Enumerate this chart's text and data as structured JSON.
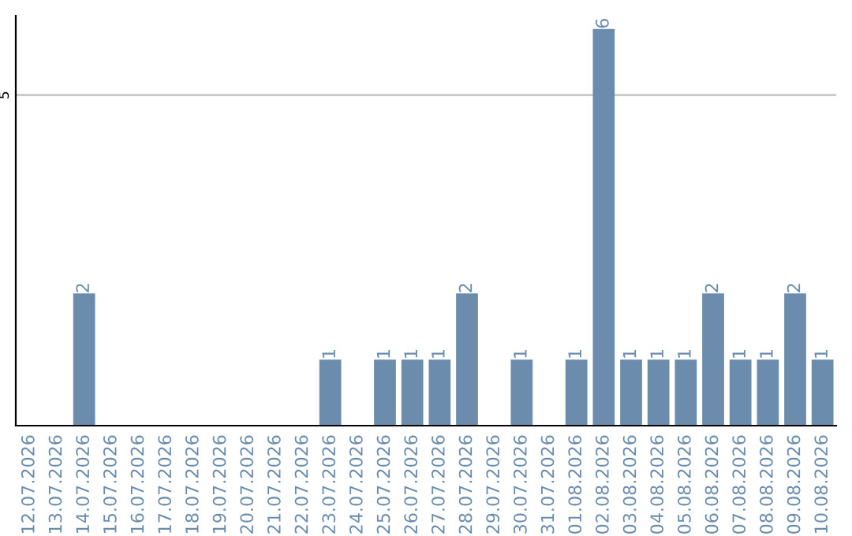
{
  "chart_data": {
    "type": "bar",
    "categories": [
      "12.07.2026",
      "13.07.2026",
      "14.07.2026",
      "15.07.2026",
      "16.07.2026",
      "17.07.2026",
      "18.07.2026",
      "19.07.2026",
      "20.07.2026",
      "21.07.2026",
      "22.07.2026",
      "23.07.2026",
      "24.07.2026",
      "25.07.2026",
      "26.07.2026",
      "27.07.2026",
      "28.07.2026",
      "29.07.2026",
      "30.07.2026",
      "31.07.2026",
      "01.08.2026",
      "02.08.2026",
      "03.08.2026",
      "04.08.2026",
      "05.08.2026",
      "06.08.2026",
      "07.08.2026",
      "08.08.2026",
      "09.08.2026",
      "10.08.2026"
    ],
    "values": [
      0,
      0,
      2,
      0,
      0,
      0,
      0,
      0,
      0,
      0,
      0,
      1,
      0,
      1,
      1,
      1,
      2,
      0,
      1,
      0,
      1,
      6,
      1,
      1,
      1,
      2,
      1,
      1,
      2,
      1
    ],
    "value_labels": [
      null,
      null,
      "2",
      null,
      null,
      null,
      null,
      null,
      null,
      null,
      null,
      "1",
      null,
      "1",
      "1",
      "1",
      "2",
      null,
      "1",
      null,
      "1",
      "6",
      "1",
      "1",
      "1",
      "2",
      "1",
      "1",
      "2",
      "1"
    ],
    "color": "#6b8cac",
    "ylim": [
      0,
      6.2
    ],
    "yticks": [
      5
    ],
    "grid": "y",
    "legend": false
  }
}
